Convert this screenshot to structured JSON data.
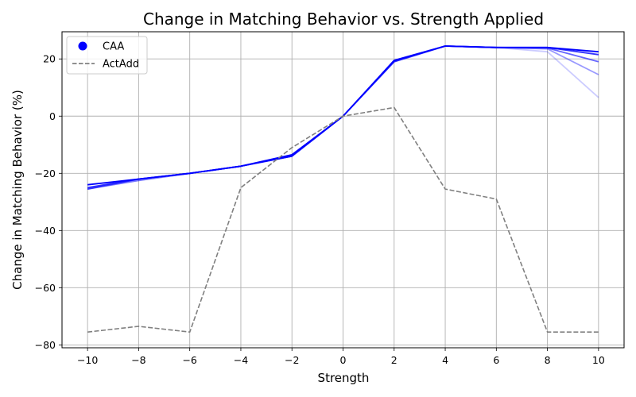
{
  "chart_data": {
    "type": "line",
    "title": "Change in Matching Behavior vs. Strength Applied",
    "xlabel": "Strength",
    "ylabel": "Change in Matching Behavior (%)",
    "xlim": [
      -11,
      11
    ],
    "ylim": [
      -81,
      29.5
    ],
    "xticks": [
      -10,
      -8,
      -6,
      -4,
      -2,
      0,
      2,
      4,
      6,
      8,
      10
    ],
    "yticks": [
      -80,
      -60,
      -40,
      -20,
      0,
      20
    ],
    "grid": true,
    "legend_position": "top-left",
    "legend": [
      {
        "label": "CAA",
        "marker": "circle",
        "color": "#0000ff"
      },
      {
        "label": "ActAdd",
        "style": "dashed",
        "color": "#808080"
      }
    ],
    "x": [
      -10,
      -8,
      -6,
      -4,
      -2,
      0,
      2,
      4,
      6,
      8,
      10
    ],
    "series": [
      {
        "color": "#0000ff",
        "opacity": 0.2,
        "dashed": false,
        "values": [
          -25.5,
          -22.5,
          -20,
          -17.5,
          -14,
          0,
          19,
          24.5,
          24,
          22.5,
          6.5
        ]
      },
      {
        "color": "#0000ff",
        "opacity": 0.4,
        "dashed": false,
        "values": [
          -25.5,
          -22.5,
          -20,
          -17.5,
          -14,
          0,
          19,
          24.5,
          24,
          23.5,
          14.5
        ]
      },
      {
        "color": "#0000ff",
        "opacity": 0.6,
        "dashed": false,
        "values": [
          -25.5,
          -22,
          -20,
          -17.5,
          -14,
          0,
          19,
          24.5,
          24,
          23.8,
          19
        ]
      },
      {
        "color": "#0000ff",
        "opacity": 0.8,
        "dashed": false,
        "values": [
          -25,
          -22,
          -20,
          -17.5,
          -14,
          0,
          19.3,
          24.5,
          24,
          24,
          21.5
        ]
      },
      {
        "color": "#0000ff",
        "opacity": 1.0,
        "dashed": false,
        "values": [
          -24,
          -22,
          -20,
          -17.5,
          -13.5,
          0,
          19.5,
          24.5,
          24,
          24,
          22.5
        ]
      },
      {
        "name": "ActAdd",
        "color": "#808080",
        "opacity": 1.0,
        "dashed": true,
        "values": [
          -75.5,
          -73.5,
          -75.5,
          -25,
          -11,
          0,
          3,
          -25.5,
          -29,
          -75.5,
          -75.5
        ]
      }
    ]
  }
}
